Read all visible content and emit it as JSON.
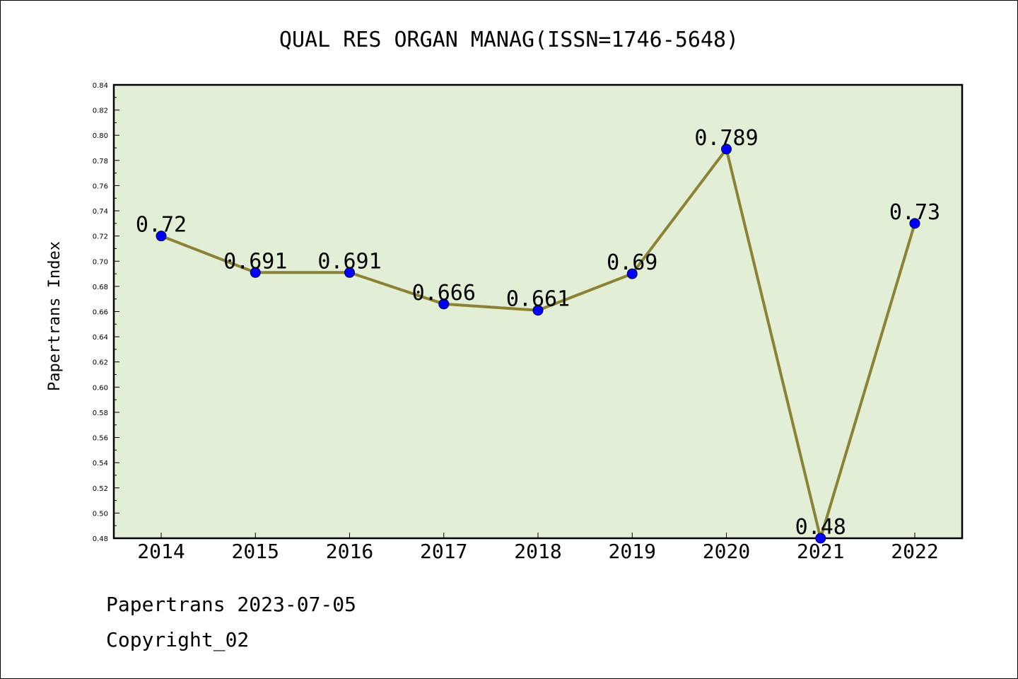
{
  "chart_data": {
    "type": "line",
    "title": "QUAL RES ORGAN MANAG(ISSN=1746-5648)",
    "ylabel": "Papertrans Index",
    "xlabel": "",
    "categories": [
      "2014",
      "2015",
      "2016",
      "2017",
      "2018",
      "2019",
      "2020",
      "2021",
      "2022"
    ],
    "values": [
      0.72,
      0.691,
      0.691,
      0.666,
      0.661,
      0.69,
      0.789,
      0.48,
      0.73
    ],
    "data_labels": [
      "0.72",
      "0.691",
      "0.691",
      "0.666",
      "0.661",
      "0.69",
      "0.789",
      "0.48",
      "0.73"
    ],
    "ylim": [
      0.48,
      0.84
    ],
    "yticks": [
      "0.48",
      "0.50",
      "0.52",
      "0.54",
      "0.56",
      "0.58",
      "0.60",
      "0.62",
      "0.64",
      "0.66",
      "0.68",
      "0.70",
      "0.72",
      "0.74",
      "0.76",
      "0.78",
      "0.80",
      "0.82",
      "0.84"
    ],
    "grid": false,
    "legend": "none",
    "colors": {
      "plot_background": "#e2efd6",
      "line": "#8b8236",
      "marker": "#0000ff"
    }
  },
  "footer": {
    "line1": "Papertrans 2023-07-05",
    "line2": "Copyright_02"
  }
}
